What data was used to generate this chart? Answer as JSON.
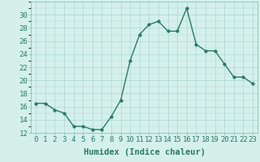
{
  "x": [
    0,
    1,
    2,
    3,
    4,
    5,
    6,
    7,
    8,
    9,
    10,
    11,
    12,
    13,
    14,
    15,
    16,
    17,
    18,
    19,
    20,
    21,
    22,
    23
  ],
  "y": [
    16.5,
    16.5,
    15.5,
    15.0,
    13.0,
    13.0,
    12.5,
    12.5,
    14.5,
    17.0,
    23.0,
    27.0,
    28.5,
    29.0,
    27.5,
    27.5,
    31.0,
    25.5,
    24.5,
    24.5,
    22.5,
    20.5,
    20.5,
    19.5
  ],
  "line_color": "#2a7a64",
  "marker_color": "#2a7a64",
  "bg_color": "#d5f0eb",
  "grid_color": "#aad8d0",
  "xlabel": "Humidex (Indice chaleur)",
  "ylim": [
    12,
    32
  ],
  "xlim": [
    -0.5,
    23.5
  ],
  "yticks": [
    12,
    14,
    16,
    18,
    20,
    22,
    24,
    26,
    28,
    30
  ],
  "xticks": [
    0,
    1,
    2,
    3,
    4,
    5,
    6,
    7,
    8,
    9,
    10,
    11,
    12,
    13,
    14,
    15,
    16,
    17,
    18,
    19,
    20,
    21,
    22,
    23
  ],
  "tick_fontsize": 6.5,
  "xlabel_fontsize": 7.5,
  "line_width": 1.0,
  "marker_size": 2.5
}
